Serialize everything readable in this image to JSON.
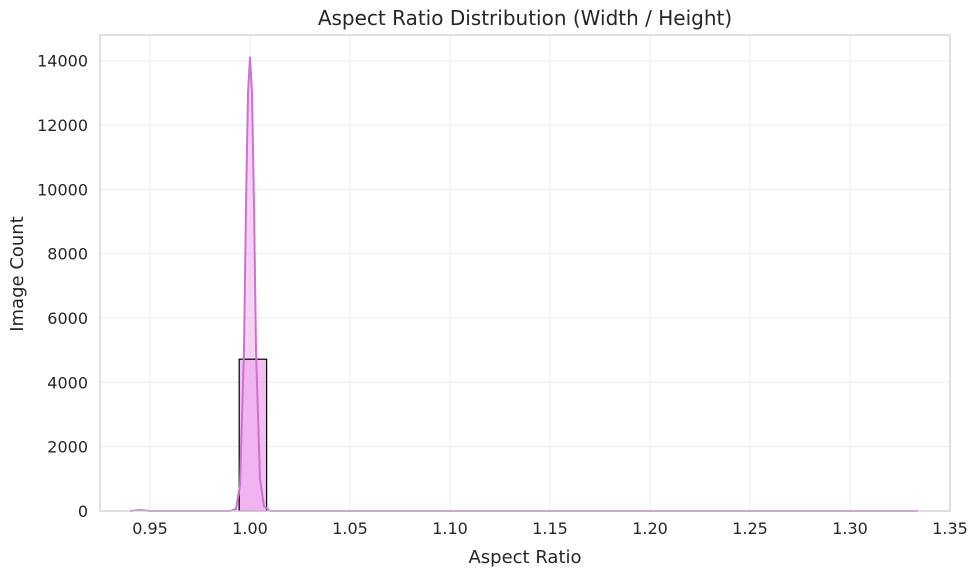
{
  "chart_data": {
    "type": "bar",
    "title": "Aspect Ratio Distribution (Width / Height)",
    "xlabel": "Aspect Ratio",
    "ylabel": "Image Count",
    "xlim": [
      0.925,
      1.35
    ],
    "ylim": [
      0,
      14800
    ],
    "xticks": [
      0.95,
      1.0,
      1.05,
      1.1,
      1.15,
      1.2,
      1.25,
      1.3,
      1.35
    ],
    "xtick_labels": [
      "0.95",
      "1.00",
      "1.05",
      "1.10",
      "1.15",
      "1.20",
      "1.25",
      "1.30",
      "1.35"
    ],
    "yticks": [
      0,
      2000,
      4000,
      6000,
      8000,
      10000,
      12000,
      14000
    ],
    "ytick_labels": [
      "0",
      "2000",
      "4000",
      "6000",
      "8000",
      "10000",
      "12000",
      "14000"
    ],
    "grid": true,
    "bars": [
      {
        "x0": 0.9946,
        "x1": 1.0083,
        "value": 4720
      }
    ],
    "kde": {
      "x": [
        0.94,
        0.945,
        0.95,
        0.99,
        0.993,
        0.995,
        0.997,
        0.998,
        0.999,
        1.0,
        1.001,
        1.002,
        1.003,
        1.005,
        1.007,
        1.01,
        1.02,
        1.1,
        1.2,
        1.334
      ],
      "y": [
        0,
        30,
        0,
        0,
        60,
        800,
        5000,
        9500,
        13000,
        14100,
        13000,
        9500,
        5000,
        1000,
        150,
        0,
        0,
        0,
        0,
        0
      ]
    },
    "colors": {
      "bar_fill": "#eeaaee",
      "bar_edge": "#000000",
      "kde_line": "#d070d0",
      "kde_fill": "#f0b8f0"
    }
  }
}
